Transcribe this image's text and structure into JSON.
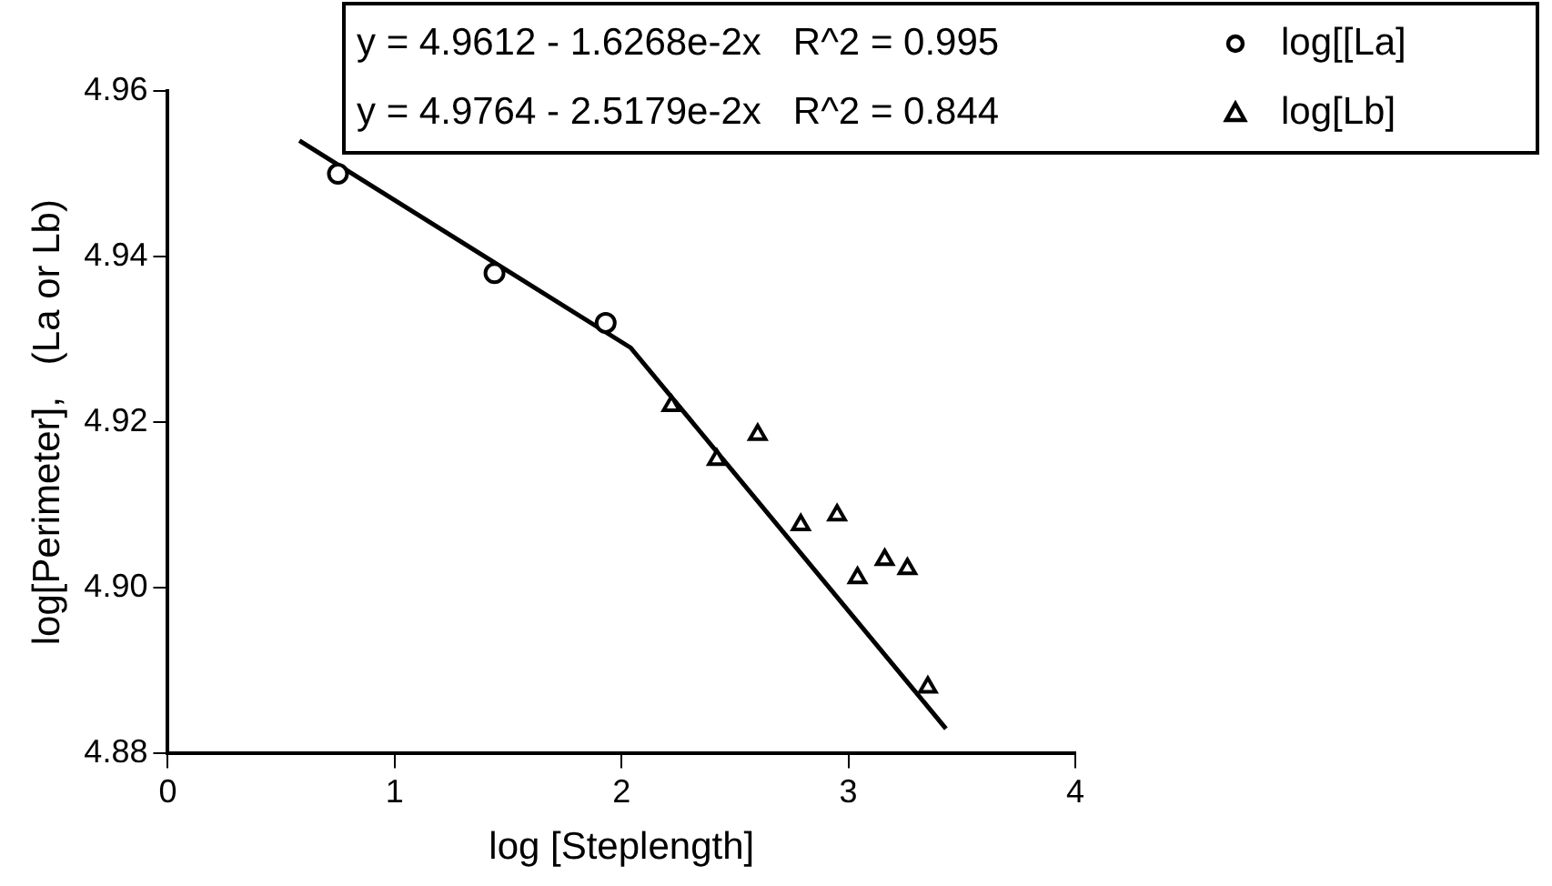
{
  "chart_data": {
    "type": "scatter",
    "xlabel": "log [Steplength]",
    "ylabel": "log[Perimeter],   (La or Lb)",
    "xlim": [
      0,
      4
    ],
    "xticks": [
      0,
      1,
      2,
      3,
      4
    ],
    "ylim": [
      4.88,
      4.96
    ],
    "yticks": [
      {
        "value": 4.88,
        "label": "4.88"
      },
      {
        "value": 4.9,
        "label": "4.90"
      },
      {
        "value": 4.92,
        "label": "4.92"
      },
      {
        "value": 4.94,
        "label": "4.94"
      },
      {
        "value": 4.96,
        "label": "4.96"
      }
    ],
    "annotations": [
      "y = 4.9612 - 1.6268e-2x   R^2 = 0.995",
      "y = 4.9764 - 2.5179e-2x   R^2 = 0.844"
    ],
    "legend": "top right",
    "grid": false,
    "series": [
      {
        "name": "log[[La]",
        "color": "#000000",
        "marker": "circle",
        "x": [
          0.75,
          1.44,
          1.93
        ],
        "values": [
          4.95,
          4.938,
          4.932
        ]
      },
      {
        "name": "log[Lb]",
        "color": "#000000",
        "marker": "triangle",
        "x": [
          2.22,
          2.42,
          2.6,
          2.79,
          2.95,
          3.04,
          3.16,
          3.26,
          3.35
        ],
        "values": [
          4.922,
          4.9155,
          4.9185,
          4.9076,
          4.9088,
          4.9012,
          4.9034,
          4.9023,
          4.888
        ]
      },
      {
        "type": "line",
        "color": "#000000",
        "marker": "none",
        "x": [
          0.58,
          2.04,
          3.43
        ],
        "values": [
          4.954,
          4.929,
          4.883
        ]
      }
    ]
  }
}
